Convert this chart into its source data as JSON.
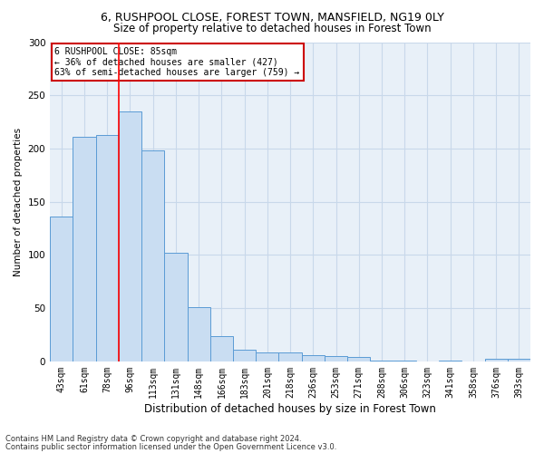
{
  "title_line1": "6, RUSHPOOL CLOSE, FOREST TOWN, MANSFIELD, NG19 0LY",
  "title_line2": "Size of property relative to detached houses in Forest Town",
  "xlabel": "Distribution of detached houses by size in Forest Town",
  "ylabel": "Number of detached properties",
  "footnote_line1": "Contains HM Land Registry data © Crown copyright and database right 2024.",
  "footnote_line2": "Contains public sector information licensed under the Open Government Licence v3.0.",
  "categories": [
    "43sqm",
    "61sqm",
    "78sqm",
    "96sqm",
    "113sqm",
    "131sqm",
    "148sqm",
    "166sqm",
    "183sqm",
    "201sqm",
    "218sqm",
    "236sqm",
    "253sqm",
    "271sqm",
    "288sqm",
    "306sqm",
    "323sqm",
    "341sqm",
    "358sqm",
    "376sqm",
    "393sqm"
  ],
  "values": [
    136,
    211,
    213,
    235,
    198,
    102,
    51,
    24,
    11,
    8,
    8,
    6,
    5,
    4,
    1,
    1,
    0,
    1,
    0,
    2,
    2
  ],
  "bar_color": "#c9ddf2",
  "bar_edge_color": "#5b9bd5",
  "red_line_x": 2.5,
  "annotation_line1": "6 RUSHPOOL CLOSE: 85sqm",
  "annotation_line2": "← 36% of detached houses are smaller (427)",
  "annotation_line3": "63% of semi-detached houses are larger (759) →",
  "annotation_box_color": "#ffffff",
  "annotation_box_edge_color": "#cc0000",
  "ylim": [
    0,
    300
  ],
  "yticks": [
    0,
    50,
    100,
    150,
    200,
    250,
    300
  ],
  "grid_color": "#c8d8ea",
  "plot_background": "#e8f0f8",
  "title1_fontsize": 9,
  "title2_fontsize": 8.5,
  "xlabel_fontsize": 8.5,
  "ylabel_fontsize": 7.5,
  "tick_fontsize": 7,
  "footnote_fontsize": 6
}
